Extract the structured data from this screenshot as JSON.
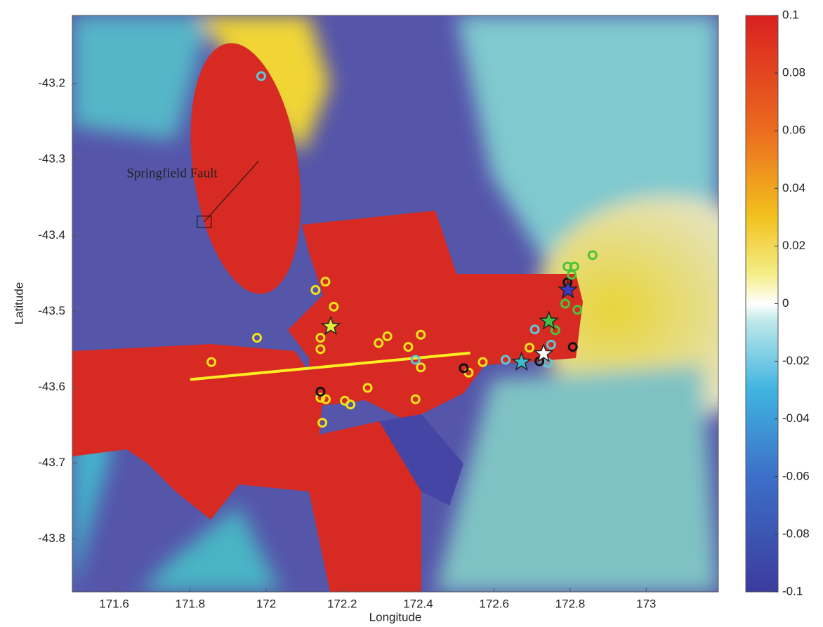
{
  "chart_data": {
    "type": "scatter",
    "xlabel": "Longitude",
    "ylabel": "Latitude",
    "annotation": "Springfield Fault",
    "xlim": [
      171.49,
      173.19
    ],
    "ylim": [
      -43.87,
      -43.11
    ],
    "xticks": [
      171.6,
      171.8,
      172,
      172.2,
      172.4,
      172.6,
      172.8,
      173
    ],
    "yticks": [
      -43.8,
      -43.7,
      -43.6,
      -43.5,
      -43.4,
      -43.3,
      -43.2
    ],
    "colorbar": {
      "lim": [
        -0.1,
        0.1
      ],
      "ticks": [
        -0.1,
        -0.08,
        -0.06,
        -0.04,
        -0.02,
        0,
        0.02,
        0.04,
        0.06,
        0.08,
        0.1
      ]
    },
    "fault_line": {
      "color": "#ffee22",
      "x": [
        171.8,
        172.537
      ],
      "y": [
        -43.59,
        -43.555
      ]
    },
    "fault_marker": {
      "x": [
        171.837,
        171.98
      ],
      "y": [
        -43.382,
        -43.302
      ]
    },
    "series": [
      {
        "marker": "circle",
        "color": "#f2e31b",
        "x": [
          171.856,
          171.976,
          172.13,
          172.156,
          172.178,
          172.143,
          172.143,
          172.143,
          172.157,
          172.207,
          172.267,
          172.222,
          172.296,
          172.319,
          172.374,
          172.407,
          172.407,
          172.393,
          172.148,
          172.533,
          172.57,
          172.693
        ],
        "y": [
          -43.567,
          -43.535,
          -43.472,
          -43.461,
          -43.494,
          -43.535,
          -43.55,
          -43.614,
          -43.616,
          -43.618,
          -43.601,
          -43.623,
          -43.542,
          -43.533,
          -43.547,
          -43.531,
          -43.574,
          -43.616,
          -43.647,
          -43.581,
          -43.567,
          -43.548
        ]
      },
      {
        "marker": "circle",
        "color": "#5ec8d8",
        "x": [
          171.987,
          172.707,
          172.75,
          172.393,
          172.63,
          172.741
        ],
        "y": [
          -43.19,
          -43.524,
          -43.544,
          -43.564,
          -43.564,
          -43.568
        ]
      },
      {
        "marker": "circle",
        "color": "#111111",
        "x": [
          172.143,
          172.52,
          172.719,
          172.793,
          172.807
        ],
        "y": [
          -43.606,
          -43.575,
          -43.566,
          -43.462,
          -43.547
        ]
      },
      {
        "marker": "circle",
        "color": "#4cc43a",
        "x": [
          172.859,
          172.793,
          172.811,
          172.787,
          172.819,
          172.761,
          172.804
        ],
        "y": [
          -43.426,
          -43.441,
          -43.441,
          -43.49,
          -43.498,
          -43.525,
          -43.452
        ]
      },
      {
        "marker": "star",
        "color": "#e4ea3c",
        "x": [
          172.17
        ],
        "y": [
          -43.52
        ]
      },
      {
        "marker": "star",
        "color": "#3fc04a",
        "x": [
          172.744
        ],
        "y": [
          -43.513
        ]
      },
      {
        "marker": "star",
        "color": "#3b3bc8",
        "x": [
          172.794
        ],
        "y": [
          -43.472
        ]
      },
      {
        "marker": "star",
        "color": "#3bbdc8",
        "x": [
          172.672
        ],
        "y": [
          -43.567
        ]
      },
      {
        "marker": "star",
        "color": "#ffffff",
        "x": [
          172.73
        ],
        "y": [
          -43.556
        ]
      }
    ]
  }
}
